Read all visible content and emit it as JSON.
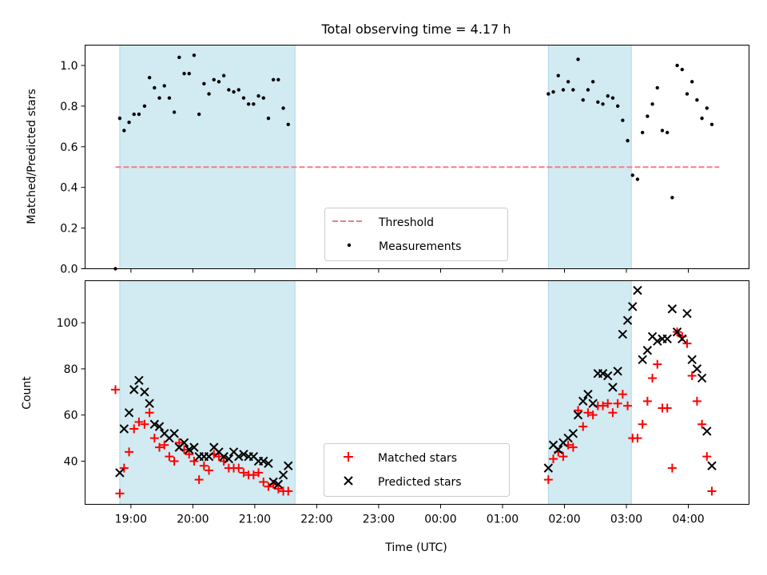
{
  "figure": {
    "title": "Total observing time = 4.17 h",
    "xlabel": "Time (UTC)",
    "x_ticks": [
      {
        "t": 19,
        "label": "19:00"
      },
      {
        "t": 20,
        "label": "20:00"
      },
      {
        "t": 21,
        "label": "21:00"
      },
      {
        "t": 22,
        "label": "22:00"
      },
      {
        "t": 23,
        "label": "23:00"
      },
      {
        "t": 24,
        "label": "00:00"
      },
      {
        "t": 25,
        "label": "01:00"
      },
      {
        "t": 26,
        "label": "02:00"
      },
      {
        "t": 27,
        "label": "03:00"
      },
      {
        "t": 28,
        "label": "04:00"
      }
    ],
    "xlim": [
      18.26,
      28.98
    ],
    "shaded_intervals": [
      [
        18.82,
        21.65
      ],
      [
        25.74,
        27.08
      ]
    ],
    "shade_color": "#add8e6"
  },
  "chart_data": [
    {
      "type": "scatter",
      "ylabel": "Matched/Predicted stars",
      "ylim": [
        0.0,
        1.1
      ],
      "y_ticks": [
        "0.0",
        "0.2",
        "0.4",
        "0.6",
        "0.8",
        "1.0"
      ],
      "legend_position": "lower-center",
      "threshold": {
        "name": "Threshold",
        "value": 0.5,
        "x_range": [
          18.75,
          28.5
        ],
        "color": "#f08080"
      },
      "series": [
        {
          "name": "Measurements",
          "color": "#000000",
          "points": [
            [
              18.75,
              0.0
            ],
            [
              18.82,
              0.74
            ],
            [
              18.89,
              0.68
            ],
            [
              18.97,
              0.72
            ],
            [
              19.05,
              0.76
            ],
            [
              19.13,
              0.76
            ],
            [
              19.22,
              0.8
            ],
            [
              19.3,
              0.94
            ],
            [
              19.38,
              0.89
            ],
            [
              19.46,
              0.84
            ],
            [
              19.54,
              0.9
            ],
            [
              19.62,
              0.84
            ],
            [
              19.7,
              0.77
            ],
            [
              19.78,
              1.04
            ],
            [
              19.86,
              0.96
            ],
            [
              19.94,
              0.96
            ],
            [
              20.02,
              1.05
            ],
            [
              20.1,
              0.76
            ],
            [
              20.18,
              0.91
            ],
            [
              20.26,
              0.86
            ],
            [
              20.34,
              0.93
            ],
            [
              20.42,
              0.92
            ],
            [
              20.5,
              0.95
            ],
            [
              20.58,
              0.88
            ],
            [
              20.66,
              0.87
            ],
            [
              20.74,
              0.88
            ],
            [
              20.82,
              0.84
            ],
            [
              20.9,
              0.81
            ],
            [
              20.98,
              0.81
            ],
            [
              21.06,
              0.85
            ],
            [
              21.14,
              0.84
            ],
            [
              21.22,
              0.74
            ],
            [
              21.3,
              0.93
            ],
            [
              21.38,
              0.93
            ],
            [
              21.46,
              0.79
            ],
            [
              21.54,
              0.71
            ],
            [
              25.74,
              0.86
            ],
            [
              25.82,
              0.87
            ],
            [
              25.9,
              0.95
            ],
            [
              25.98,
              0.88
            ],
            [
              26.06,
              0.92
            ],
            [
              26.14,
              0.88
            ],
            [
              26.22,
              1.03
            ],
            [
              26.3,
              0.83
            ],
            [
              26.38,
              0.88
            ],
            [
              26.46,
              0.92
            ],
            [
              26.54,
              0.82
            ],
            [
              26.62,
              0.81
            ],
            [
              26.7,
              0.85
            ],
            [
              26.78,
              0.84
            ],
            [
              26.86,
              0.8
            ],
            [
              26.94,
              0.73
            ],
            [
              27.02,
              0.63
            ],
            [
              27.1,
              0.46
            ],
            [
              27.18,
              0.44
            ],
            [
              27.26,
              0.67
            ],
            [
              27.34,
              0.75
            ],
            [
              27.42,
              0.81
            ],
            [
              27.5,
              0.89
            ],
            [
              27.58,
              0.68
            ],
            [
              27.66,
              0.67
            ],
            [
              27.74,
              0.35
            ],
            [
              27.82,
              1.0
            ],
            [
              27.9,
              0.98
            ],
            [
              27.98,
              0.86
            ],
            [
              28.06,
              0.92
            ],
            [
              28.14,
              0.83
            ],
            [
              28.22,
              0.74
            ],
            [
              28.3,
              0.79
            ],
            [
              28.38,
              0.71
            ]
          ]
        }
      ]
    },
    {
      "type": "scatter",
      "ylabel": "Count",
      "ylim": [
        21.3,
        118.2
      ],
      "y_ticks": [
        "40",
        "60",
        "80",
        "100"
      ],
      "legend_position": "lower-center",
      "series": [
        {
          "name": "Matched stars",
          "marker": "plus",
          "color": "#ff0000",
          "points": [
            [
              18.75,
              71
            ],
            [
              18.82,
              26
            ],
            [
              18.89,
              37
            ],
            [
              18.97,
              44
            ],
            [
              19.05,
              54
            ],
            [
              19.13,
              57
            ],
            [
              19.22,
              56
            ],
            [
              19.3,
              61
            ],
            [
              19.38,
              50
            ],
            [
              19.46,
              46
            ],
            [
              19.54,
              47
            ],
            [
              19.62,
              42
            ],
            [
              19.7,
              40
            ],
            [
              19.78,
              48
            ],
            [
              19.86,
              45
            ],
            [
              19.94,
              43
            ],
            [
              20.02,
              40
            ],
            [
              20.1,
              32
            ],
            [
              20.18,
              38
            ],
            [
              20.26,
              36
            ],
            [
              20.34,
              43
            ],
            [
              20.42,
              42
            ],
            [
              20.5,
              40
            ],
            [
              20.58,
              37
            ],
            [
              20.66,
              37
            ],
            [
              20.74,
              37
            ],
            [
              20.82,
              35
            ],
            [
              20.9,
              34
            ],
            [
              20.98,
              34
            ],
            [
              21.06,
              35
            ],
            [
              21.14,
              31
            ],
            [
              21.22,
              29
            ],
            [
              21.3,
              30
            ],
            [
              21.38,
              28
            ],
            [
              21.46,
              27
            ],
            [
              21.54,
              27
            ],
            [
              25.74,
              32
            ],
            [
              25.82,
              41
            ],
            [
              25.9,
              44
            ],
            [
              25.98,
              42
            ],
            [
              26.06,
              47
            ],
            [
              26.14,
              46
            ],
            [
              26.22,
              62
            ],
            [
              26.3,
              55
            ],
            [
              26.38,
              61
            ],
            [
              26.46,
              60
            ],
            [
              26.54,
              64
            ],
            [
              26.62,
              64
            ],
            [
              26.7,
              65
            ],
            [
              26.78,
              61
            ],
            [
              26.86,
              65
            ],
            [
              26.94,
              69
            ],
            [
              27.02,
              64
            ],
            [
              27.1,
              50
            ],
            [
              27.18,
              50
            ],
            [
              27.26,
              56
            ],
            [
              27.34,
              66
            ],
            [
              27.42,
              76
            ],
            [
              27.5,
              82
            ],
            [
              27.58,
              63
            ],
            [
              27.66,
              63
            ],
            [
              27.74,
              37
            ],
            [
              27.82,
              96
            ],
            [
              27.9,
              94
            ],
            [
              27.98,
              91
            ],
            [
              28.06,
              77
            ],
            [
              28.14,
              66
            ],
            [
              28.22,
              56
            ],
            [
              28.3,
              42
            ],
            [
              28.38,
              27
            ]
          ]
        },
        {
          "name": "Predicted stars",
          "marker": "x",
          "color": "#000000",
          "points": [
            [
              18.82,
              35
            ],
            [
              18.89,
              54
            ],
            [
              18.97,
              61
            ],
            [
              19.05,
              71
            ],
            [
              19.13,
              75
            ],
            [
              19.22,
              70
            ],
            [
              19.3,
              65
            ],
            [
              19.38,
              56
            ],
            [
              19.46,
              55
            ],
            [
              19.54,
              52
            ],
            [
              19.62,
              50
            ],
            [
              19.7,
              52
            ],
            [
              19.78,
              46
            ],
            [
              19.86,
              48
            ],
            [
              19.94,
              45
            ],
            [
              20.02,
              46
            ],
            [
              20.1,
              42
            ],
            [
              20.18,
              42
            ],
            [
              20.26,
              42
            ],
            [
              20.34,
              46
            ],
            [
              20.42,
              44
            ],
            [
              20.5,
              42
            ],
            [
              20.58,
              41
            ],
            [
              20.66,
              44
            ],
            [
              20.74,
              42
            ],
            [
              20.82,
              43
            ],
            [
              20.9,
              42
            ],
            [
              20.98,
              42
            ],
            [
              21.06,
              40
            ],
            [
              21.14,
              40
            ],
            [
              21.22,
              39
            ],
            [
              21.3,
              31
            ],
            [
              21.38,
              30
            ],
            [
              21.46,
              34
            ],
            [
              21.54,
              38
            ],
            [
              25.74,
              37
            ],
            [
              25.82,
              47
            ],
            [
              25.9,
              45
            ],
            [
              25.98,
              48
            ],
            [
              26.06,
              50
            ],
            [
              26.14,
              52
            ],
            [
              26.22,
              60
            ],
            [
              26.3,
              66
            ],
            [
              26.38,
              69
            ],
            [
              26.46,
              65
            ],
            [
              26.54,
              78
            ],
            [
              26.62,
              78
            ],
            [
              26.7,
              77
            ],
            [
              26.78,
              72
            ],
            [
              26.86,
              79
            ],
            [
              26.94,
              95
            ],
            [
              27.02,
              101
            ],
            [
              27.1,
              107
            ],
            [
              27.18,
              114
            ],
            [
              27.26,
              84
            ],
            [
              27.34,
              88
            ],
            [
              27.42,
              94
            ],
            [
              27.5,
              92
            ],
            [
              27.58,
              93
            ],
            [
              27.66,
              93
            ],
            [
              27.74,
              106
            ],
            [
              27.82,
              96
            ],
            [
              27.9,
              93
            ],
            [
              27.98,
              104
            ],
            [
              28.06,
              84
            ],
            [
              28.14,
              80
            ],
            [
              28.22,
              76
            ],
            [
              28.3,
              53
            ],
            [
              28.38,
              38
            ]
          ]
        }
      ]
    }
  ]
}
